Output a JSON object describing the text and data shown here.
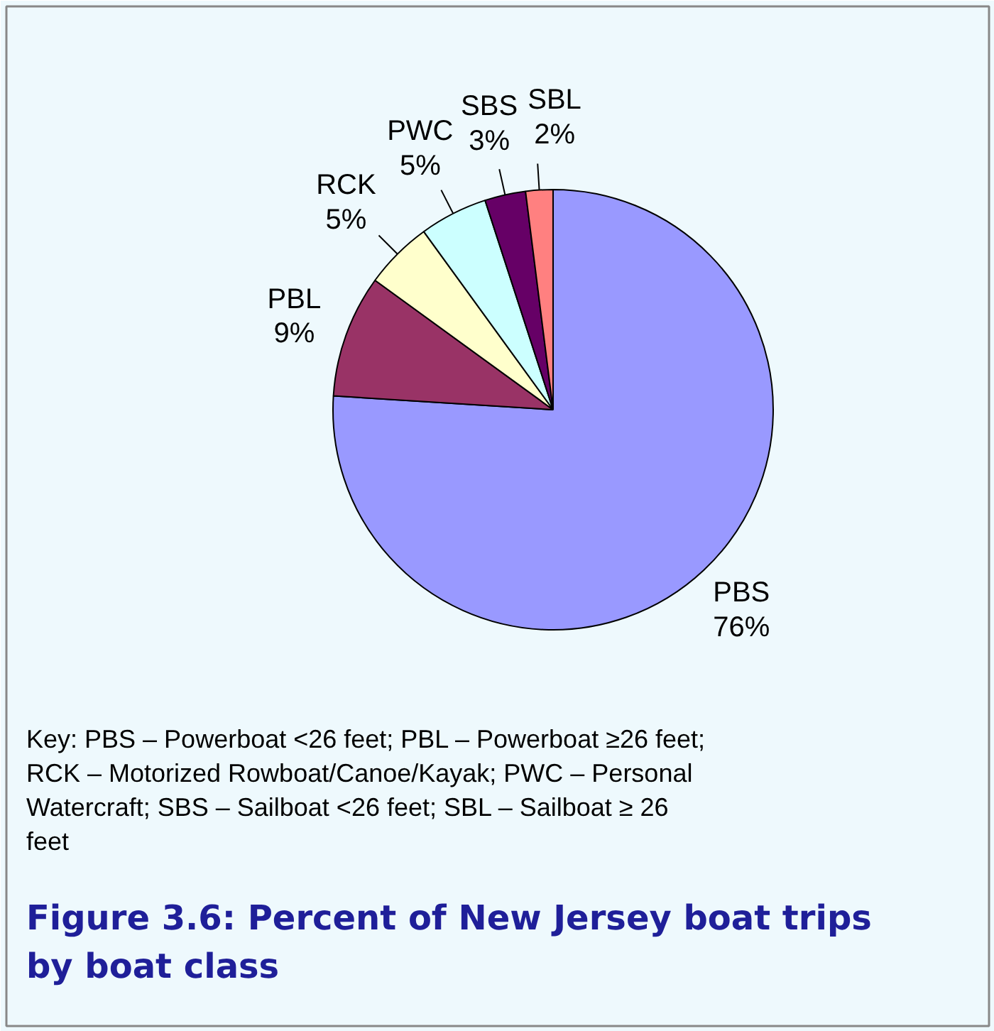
{
  "chart_data": {
    "type": "pie",
    "title": "Figure 3.6:  Percent of New Jersey boat trips by boat class",
    "categories": [
      "PBS",
      "PBL",
      "RCK",
      "PWC",
      "SBS",
      "SBL"
    ],
    "values": [
      76,
      9,
      5,
      5,
      3,
      2
    ],
    "value_labels": [
      "76%",
      "9%",
      "5%",
      "5%",
      "3%",
      "2%"
    ],
    "colors": [
      "#9999ff",
      "#993366",
      "#ffffcc",
      "#ccffff",
      "#660066",
      "#ff8080"
    ],
    "annotations": [
      "Key:  PBS – Powerboat <26 feet; PBL – Powerboat ≥26 feet; RCK – Motorized Rowboat/Canoe/Kayak; PWC – Personal Watercraft; SBS – Sailboat <26 feet; SBL – Sailboat ≥ 26 feet"
    ]
  }
}
